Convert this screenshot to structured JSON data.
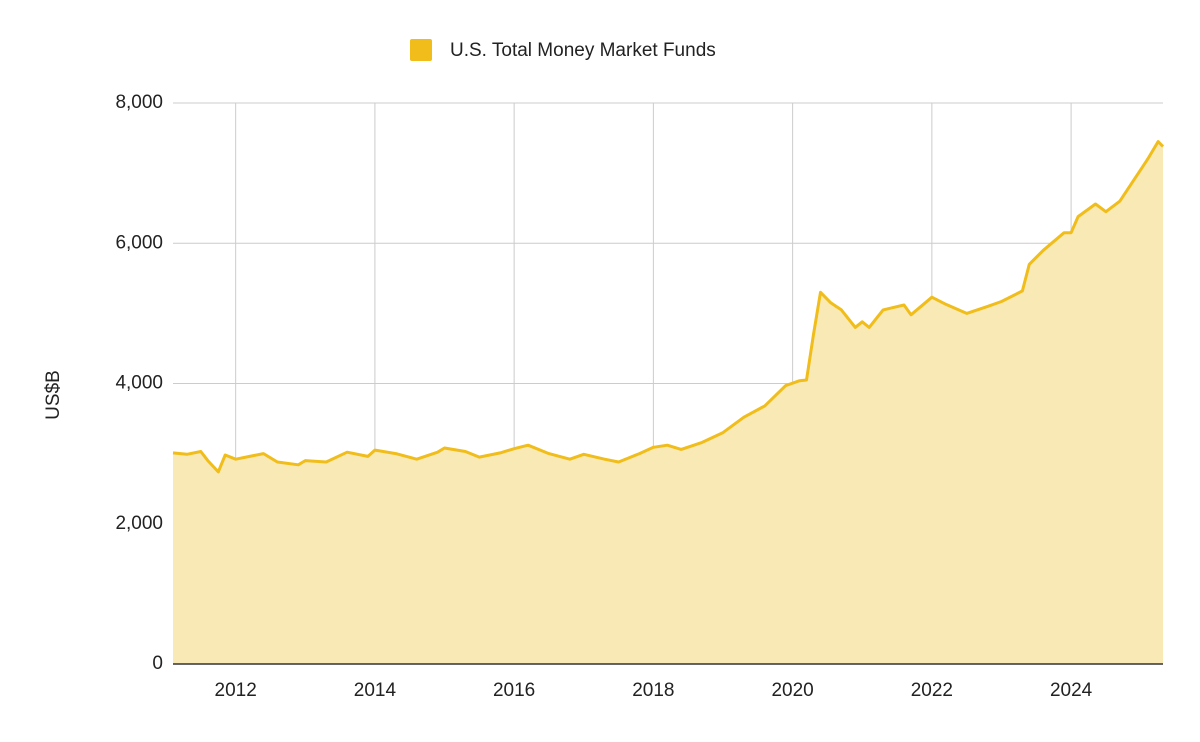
{
  "chart_data": {
    "type": "area",
    "legend_position": "top",
    "y_label": "US$B",
    "grid": true,
    "xlim": [
      2011.1,
      2025.32
    ],
    "xticks": [
      2012,
      2014,
      2016,
      2018,
      2020,
      2022,
      2024
    ],
    "ylim": [
      0,
      8000
    ],
    "yticks": [
      0,
      {
        "value": 2000,
        "label": "2,000"
      },
      {
        "value": 4000,
        "label": "4,000"
      },
      {
        "value": 6000,
        "label": "6,000"
      },
      {
        "value": 8000,
        "label": "8,000"
      }
    ],
    "x": [
      2011.1,
      2011.3,
      2011.5,
      2011.6,
      2011.75,
      2011.85,
      2012.0,
      2012.2,
      2012.4,
      2012.6,
      2012.9,
      2013.0,
      2013.3,
      2013.6,
      2013.9,
      2014.0,
      2014.3,
      2014.6,
      2014.9,
      2015.0,
      2015.3,
      2015.5,
      2015.8,
      2016.0,
      2016.2,
      2016.5,
      2016.8,
      2017.0,
      2017.3,
      2017.5,
      2017.8,
      2018.0,
      2018.2,
      2018.4,
      2018.7,
      2019.0,
      2019.3,
      2019.6,
      2019.9,
      2020.1,
      2020.2,
      2020.3,
      2020.4,
      2020.55,
      2020.7,
      2020.9,
      2021.0,
      2021.1,
      2021.3,
      2021.6,
      2021.7,
      2022.0,
      2022.2,
      2022.5,
      2022.8,
      2023.0,
      2023.3,
      2023.4,
      2023.6,
      2023.9,
      2024.0,
      2024.1,
      2024.35,
      2024.5,
      2024.7,
      2024.9,
      2025.1,
      2025.25,
      2025.32
    ],
    "series": [
      {
        "name": "U.S. Total Money Market Funds",
        "color": "#f0bd1a",
        "fill": "#f9e9b4",
        "values": [
          3010,
          2990,
          3030,
          2900,
          2740,
          2980,
          2920,
          2960,
          3000,
          2880,
          2840,
          2900,
          2880,
          3020,
          2960,
          3050,
          3000,
          2920,
          3020,
          3080,
          3030,
          2950,
          3010,
          3070,
          3120,
          3000,
          2920,
          2990,
          2920,
          2880,
          3000,
          3090,
          3120,
          3060,
          3160,
          3300,
          3520,
          3680,
          3970,
          4040,
          4050,
          4700,
          5300,
          5150,
          5050,
          4800,
          4880,
          4800,
          5050,
          5120,
          4980,
          5230,
          5130,
          5000,
          5100,
          5170,
          5320,
          5700,
          5900,
          6150,
          6150,
          6380,
          6560,
          6450,
          6600,
          6900,
          7200,
          7450,
          7380
        ]
      }
    ]
  }
}
